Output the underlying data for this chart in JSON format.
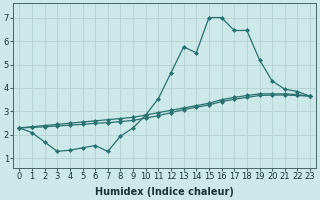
{
  "xlabel": "Humidex (Indice chaleur)",
  "ylabel": "",
  "background_color": "#cce8e8",
  "grid_color": "#b0cece",
  "line_color": "#2a7070",
  "xlim": [
    -0.5,
    23.5
  ],
  "ylim": [
    0.6,
    7.6
  ],
  "xticks": [
    0,
    1,
    2,
    3,
    4,
    5,
    6,
    7,
    8,
    9,
    10,
    11,
    12,
    13,
    14,
    15,
    16,
    17,
    18,
    19,
    20,
    21,
    22,
    23
  ],
  "yticks": [
    1,
    2,
    3,
    4,
    5,
    6,
    7
  ],
  "line1_x": [
    0,
    1,
    2,
    3,
    4,
    5,
    6,
    7,
    8,
    9,
    10,
    11,
    12,
    13,
    14,
    15,
    16,
    17,
    18,
    19,
    20,
    21,
    22,
    23
  ],
  "line1_y": [
    2.3,
    2.1,
    1.7,
    1.3,
    1.35,
    1.45,
    1.55,
    1.3,
    1.95,
    2.3,
    2.85,
    3.55,
    4.65,
    5.75,
    5.5,
    7.0,
    7.0,
    6.45,
    6.45,
    5.2,
    4.3,
    3.95,
    3.85,
    3.65
  ],
  "line2_x": [
    0,
    1,
    2,
    3,
    4,
    5,
    6,
    7,
    8,
    9,
    10,
    11,
    12,
    13,
    14,
    15,
    16,
    17,
    18,
    19,
    20,
    21,
    22,
    23
  ],
  "line2_y": [
    2.3,
    2.35,
    2.4,
    2.45,
    2.5,
    2.55,
    2.6,
    2.65,
    2.7,
    2.75,
    2.85,
    2.95,
    3.05,
    3.15,
    3.25,
    3.35,
    3.5,
    3.6,
    3.68,
    3.75,
    3.75,
    3.75,
    3.72,
    3.65
  ],
  "line3_x": [
    0,
    1,
    2,
    3,
    4,
    5,
    6,
    7,
    8,
    9,
    10,
    11,
    12,
    13,
    14,
    15,
    16,
    17,
    18,
    19,
    20,
    21,
    22,
    23
  ],
  "line3_y": [
    2.3,
    2.32,
    2.35,
    2.38,
    2.42,
    2.45,
    2.5,
    2.52,
    2.57,
    2.62,
    2.72,
    2.82,
    2.95,
    3.08,
    3.18,
    3.28,
    3.42,
    3.52,
    3.6,
    3.68,
    3.7,
    3.7,
    3.68,
    3.65
  ],
  "marker": "D",
  "marker_size": 2.0,
  "linewidth": 0.9,
  "xlabel_fontsize": 7,
  "tick_fontsize": 6,
  "spine_color": "#446666"
}
